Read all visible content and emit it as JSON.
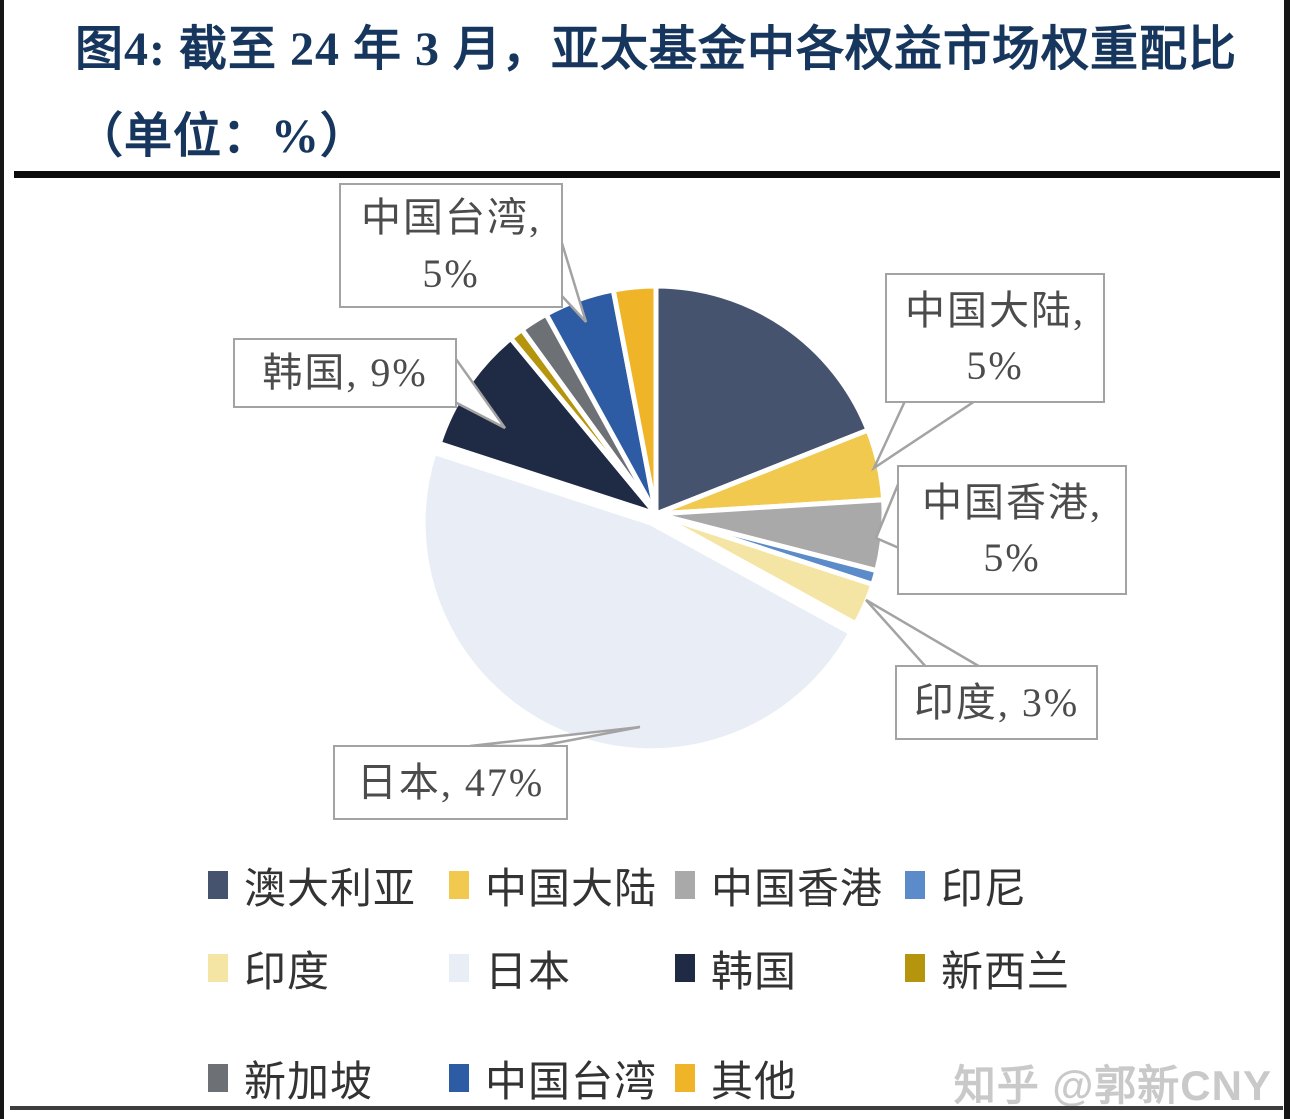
{
  "figure": {
    "title_line1": "图4:  截至 24 年 3 月，亚太基金中各权益市场权重配比",
    "title_line2": "（单位：%）",
    "title_color": "#17365d"
  },
  "watermark": {
    "text": "知乎 @郭新CNY"
  },
  "callouts": {
    "taiwan": {
      "line1": "中国台湾,",
      "line2": "5%"
    },
    "korea": {
      "line1": "韩国, 9%"
    },
    "mainland": {
      "line1": "中国大陆,",
      "line2": "5%"
    },
    "hongkong": {
      "line1": "中国香港,",
      "line2": "5%"
    },
    "india": {
      "line1": "印度, 3%"
    },
    "japan": {
      "line1": "日本, 47%"
    }
  },
  "chart_data": {
    "type": "pie",
    "title": "截至 24 年 3 月，亚太基金中各权益市场权重配比",
    "unit": "%",
    "direction": "clockwise",
    "start_angle_deg": 0,
    "legend_position": "bottom",
    "series": [
      {
        "key": "australia",
        "name": "澳大利亚",
        "value": 19,
        "color": "#46536e",
        "data_label": ""
      },
      {
        "key": "china-mainland",
        "name": "中国大陆",
        "value": 5,
        "color": "#f0c94e",
        "data_label": "中国大陆, 5%"
      },
      {
        "key": "china-hongkong",
        "name": "中国香港",
        "value": 5,
        "color": "#a9a9a9",
        "data_label": "中国香港, 5%"
      },
      {
        "key": "indonesia",
        "name": "印尼",
        "value": 1,
        "color": "#5b8bc9",
        "data_label": ""
      },
      {
        "key": "india",
        "name": "印度",
        "value": 3,
        "color": "#f5e5a5",
        "data_label": "印度, 3%"
      },
      {
        "key": "japan",
        "name": "日本",
        "value": 47,
        "color": "#e9edf6",
        "data_label": "日本, 47%",
        "exploded": true
      },
      {
        "key": "south-korea",
        "name": "韩国",
        "value": 9,
        "color": "#1f2b44",
        "data_label": "韩国, 9%"
      },
      {
        "key": "new-zealand",
        "name": "新西兰",
        "value": 1,
        "color": "#b6950e",
        "data_label": ""
      },
      {
        "key": "singapore",
        "name": "新加坡",
        "value": 2,
        "color": "#6d7075",
        "data_label": ""
      },
      {
        "key": "china-taiwan",
        "name": "中国台湾",
        "value": 5,
        "color": "#2e5ca4",
        "data_label": "中国台湾, 5%"
      },
      {
        "key": "others",
        "name": "其他",
        "value": 3,
        "color": "#f0b429",
        "data_label": ""
      }
    ]
  }
}
